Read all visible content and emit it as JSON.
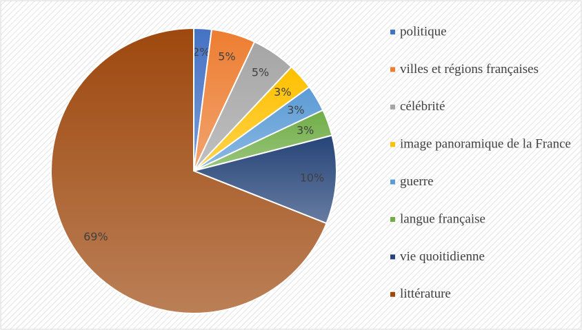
{
  "chart_data": {
    "type": "pie",
    "categories": [
      "politique",
      "villes et régions françaises",
      "célébrité",
      "image panoramique de la France",
      "guerre",
      "langue française",
      "vie quoitidienne",
      "littérature"
    ],
    "values": [
      2,
      5,
      5,
      3,
      3,
      3,
      10,
      69
    ],
    "value_labels": [
      "2%",
      "5%",
      "5%",
      "3%",
      "3%",
      "3%",
      "10%",
      "69%"
    ],
    "colors": [
      "#4472c4",
      "#ed7d31",
      "#a5a5a5",
      "#ffc000",
      "#5b9bd5",
      "#70ad47",
      "#264478",
      "#9e480e"
    ],
    "legend": "right"
  }
}
